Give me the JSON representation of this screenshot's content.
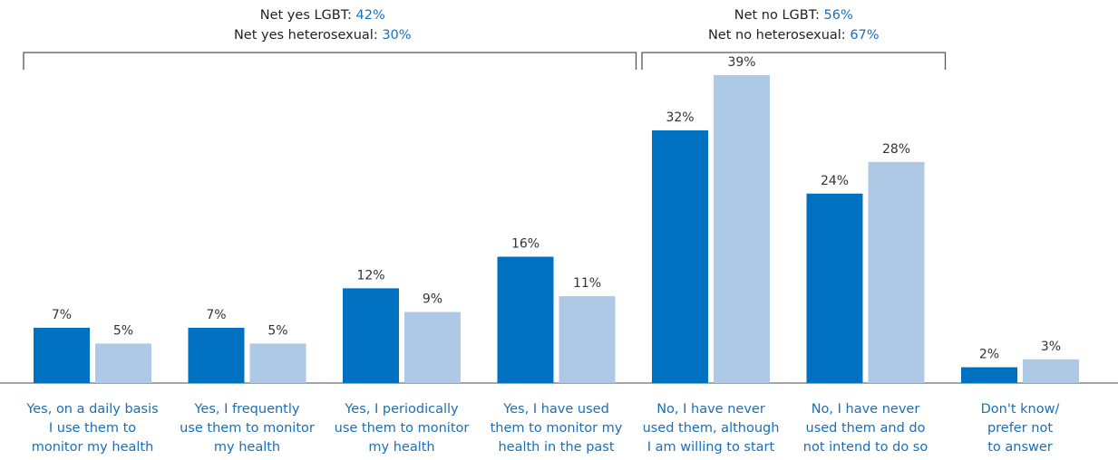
{
  "chart_data": {
    "type": "bar",
    "categories": [
      [
        "Yes, on a daily basis",
        "I use them to",
        "monitor my health"
      ],
      [
        "Yes, I frequently",
        "use them to monitor",
        "my health"
      ],
      [
        "Yes, I periodically",
        "use them to monitor",
        "my health"
      ],
      [
        "Yes, I have used",
        "them to monitor my",
        "health in the past"
      ],
      [
        "No, I have never",
        "used them, although",
        "I am willing to start"
      ],
      [
        "No, I have never",
        "used them and do",
        "not intend to do so"
      ],
      [
        "Don't know/",
        "prefer not",
        "to answer"
      ]
    ],
    "series": [
      {
        "values": [
          7,
          7,
          12,
          16,
          32,
          24,
          2
        ],
        "labels": [
          "7%",
          "7%",
          "12%",
          "16%",
          "32%",
          "24%",
          "2%"
        ]
      },
      {
        "values": [
          5,
          5,
          9,
          11,
          39,
          28,
          3
        ],
        "labels": [
          "5%",
          "5%",
          "9%",
          "11%",
          "39%",
          "28%",
          "3%"
        ]
      }
    ],
    "ylim": [
      0,
      39
    ],
    "grid": false,
    "colors": {
      "series1": "#0070c0",
      "series2": "#adc9e6",
      "label_blue": "#1a6fb8",
      "bracket": "#555555"
    },
    "annotations": [
      {
        "brackets": [
          0,
          3
        ],
        "lines": [
          {
            "text": "Net yes LGBT: ",
            "value": "42%"
          },
          {
            "text": "Net yes heterosexual: ",
            "value": "30%"
          }
        ]
      },
      {
        "brackets": [
          4,
          5
        ],
        "lines": [
          {
            "text": "Net no LGBT: ",
            "value": "56%"
          },
          {
            "text": "Net no heterosexual: ",
            "value": "67%"
          }
        ]
      }
    ]
  }
}
